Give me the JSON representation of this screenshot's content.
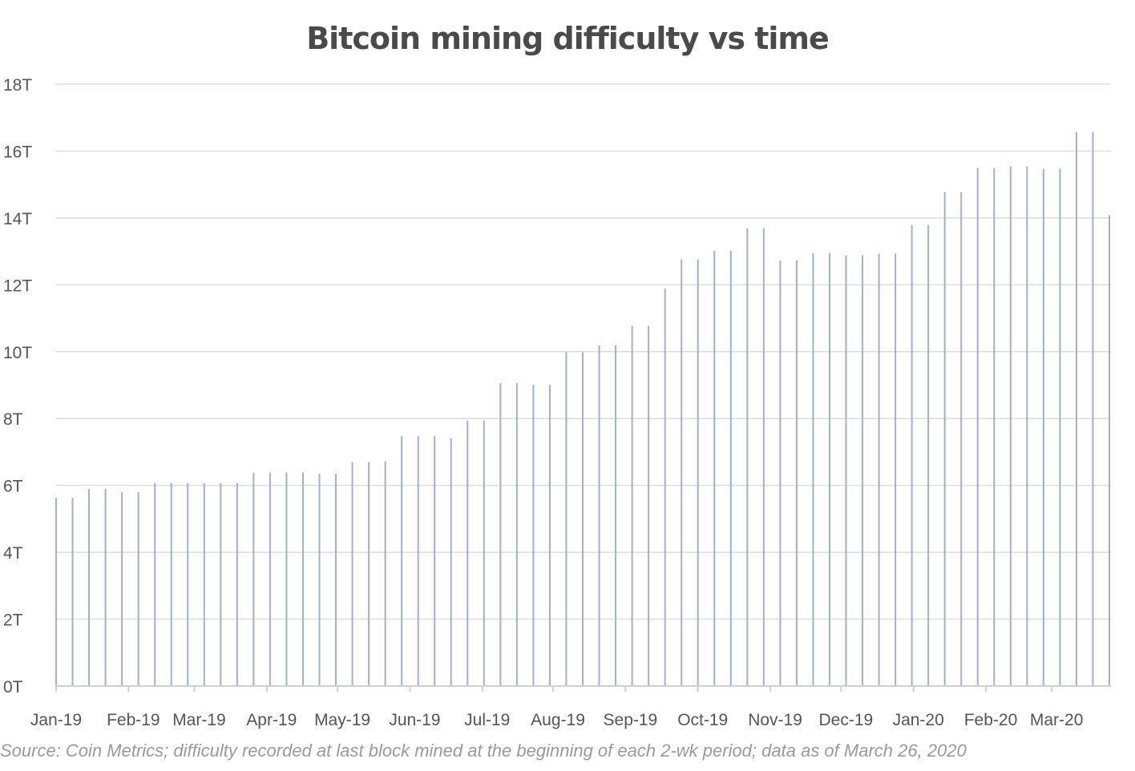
{
  "chart_data": {
    "type": "bar",
    "title": "Bitcoin mining difficulty vs time",
    "xlabel": "",
    "ylabel": "",
    "ylim": [
      0,
      18
    ],
    "y_unit": "T",
    "y_ticks": [
      "0T",
      "2T",
      "4T",
      "6T",
      "8T",
      "10T",
      "12T",
      "14T",
      "16T",
      "18T"
    ],
    "x_tick_labels": [
      "Jan-19",
      "Feb-19",
      "Mar-19",
      "Apr-19",
      "May-19",
      "Jun-19",
      "Jul-19",
      "Aug-19",
      "Sep-19",
      "Oct-19",
      "Nov-19",
      "Dec-19",
      "Jan-20",
      "Feb-20",
      "Mar-20"
    ],
    "grid": "horizontal",
    "bar_color": "#9fb0d3",
    "values": [
      5.63,
      5.63,
      5.9,
      5.9,
      5.8,
      5.8,
      6.07,
      6.07,
      6.07,
      6.07,
      6.07,
      6.07,
      6.38,
      6.38,
      6.39,
      6.39,
      6.35,
      6.35,
      6.7,
      6.7,
      6.72,
      7.48,
      7.48,
      7.48,
      7.41,
      7.94,
      7.94,
      9.06,
      9.06,
      9.01,
      9.01,
      9.98,
      9.98,
      10.19,
      10.19,
      10.77,
      10.77,
      11.89,
      12.76,
      12.76,
      13.02,
      13.02,
      13.69,
      13.69,
      12.73,
      12.73,
      12.95,
      12.95,
      12.88,
      12.88,
      12.93,
      12.93,
      13.79,
      13.79,
      14.77,
      14.77,
      15.49,
      15.49,
      15.54,
      15.54,
      15.47,
      15.47,
      16.57,
      16.57,
      14.08
    ]
  },
  "source_note": "Source: Coin Metrics; difficulty recorded at last block mined at the beginning of each 2-wk period; data as of March 26, 2020"
}
